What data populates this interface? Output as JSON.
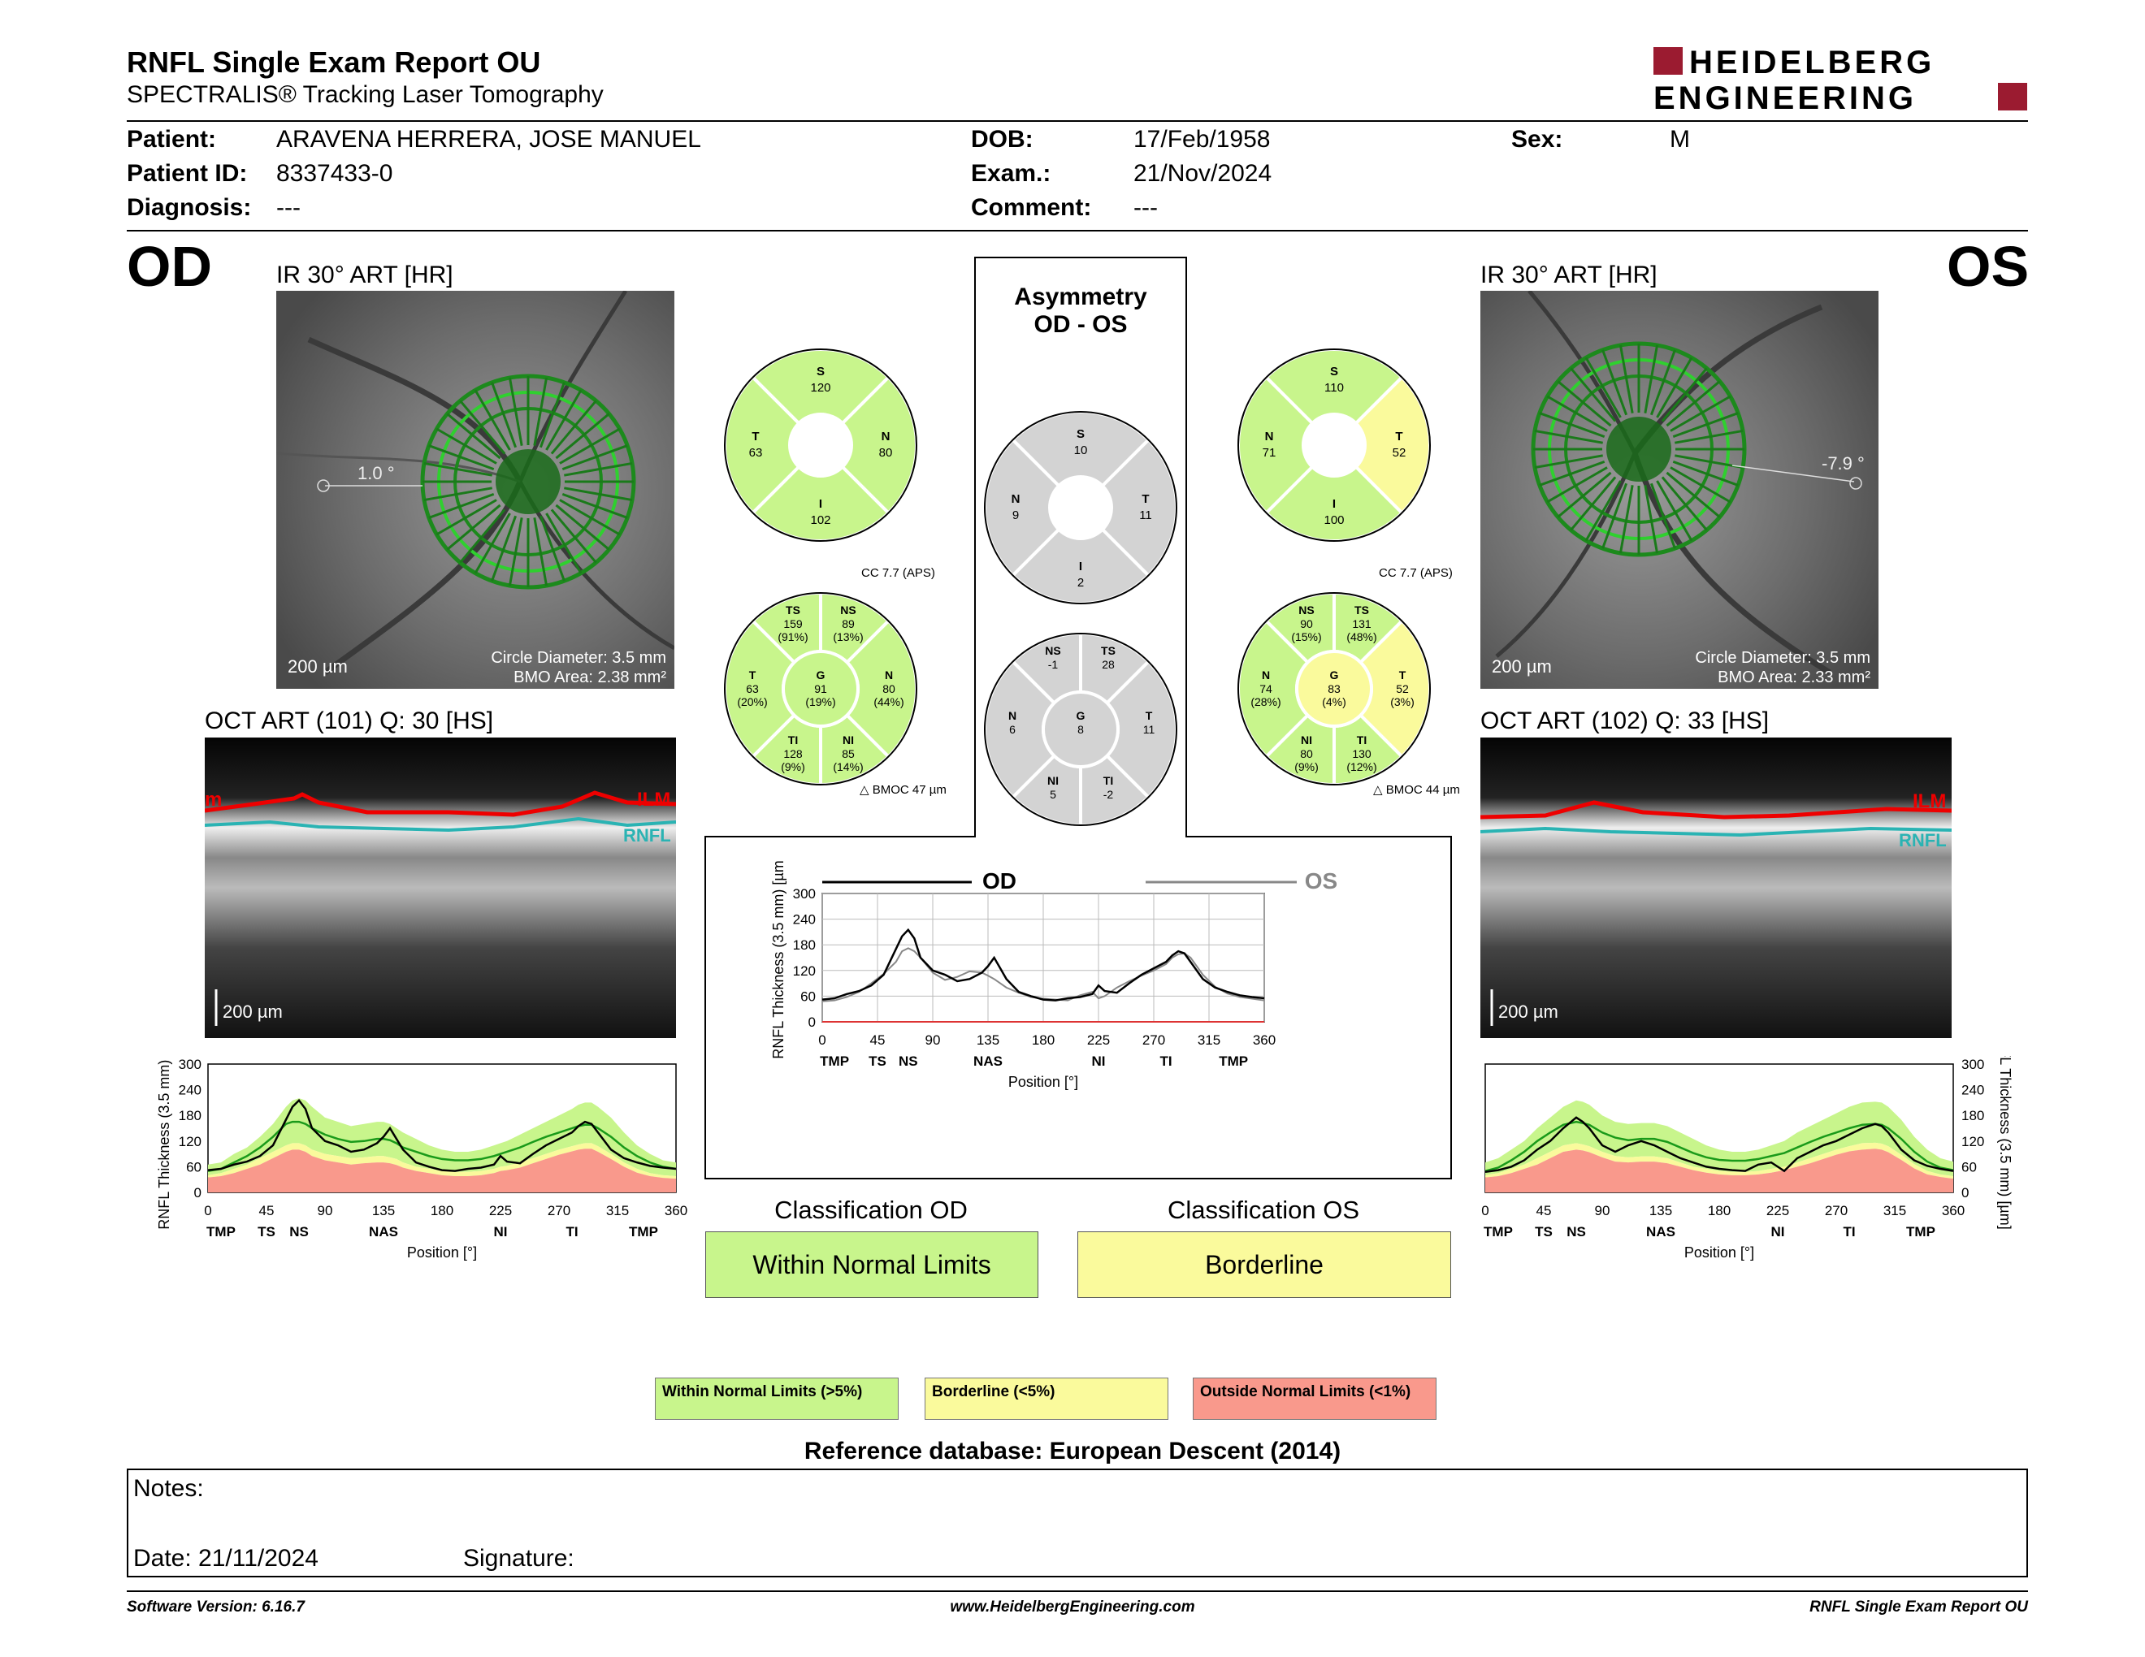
{
  "header": {
    "title": "RNFL Single Exam Report OU",
    "subtitle": "SPECTRALIS® Tracking Laser Tomography",
    "logo_line1": "HEIDELBERG",
    "logo_line2": "ENGINEERING"
  },
  "patient": {
    "patient_label": "Patient:",
    "patient_value": "ARAVENA HERRERA, JOSE MANUEL",
    "id_label": "Patient ID:",
    "id_value": "8337433-0",
    "diag_label": "Diagnosis:",
    "diag_value": "---",
    "dob_label": "DOB:",
    "dob_value": "17/Feb/1958",
    "exam_label": "Exam.:",
    "exam_value": "21/Nov/2024",
    "comment_label": "Comment:",
    "comment_value": "---",
    "sex_label": "Sex:",
    "sex_value": "M"
  },
  "od": {
    "eye": "OD",
    "ir_caption": "IR 30° ART [HR]",
    "angle": "1.0 °",
    "scale": "200 µm",
    "circle_diameter": "Circle Diameter: 3.5 mm",
    "bmo_area": "BMO Area: 2.38 mm²",
    "oct_caption": "OCT ART (101) Q: 30 [HS]",
    "ilm": "ILM",
    "rnfl": "RNFL",
    "bscan_scale": "200 µm"
  },
  "os": {
    "eye": "OS",
    "ir_caption": "IR 30° ART [HR]",
    "angle": "-7.9 °",
    "scale": "200 µm",
    "circle_diameter": "Circle Diameter: 3.5 mm",
    "bmo_area": "BMO Area: 2.33 mm²",
    "oct_caption": "OCT ART (102) Q: 33 [HS]",
    "ilm": "ILM",
    "rnfl": "RNFL",
    "bscan_scale": "200 µm"
  },
  "asymmetry": {
    "title1": "Asymmetry",
    "title2": "OD - OS"
  },
  "quadrants": {
    "od": {
      "S": "120",
      "T": "63",
      "N": "80",
      "I": "102"
    },
    "diff": {
      "S": "10",
      "N": "9",
      "T": "11",
      "I": "2"
    },
    "os": {
      "S": "110",
      "N": "71",
      "T": "52",
      "I": "100"
    }
  },
  "sectors": {
    "od": {
      "cc": "CC 7.7 (APS)",
      "bmoc": "BMOC 47 µm",
      "TS": [
        "159",
        "(91%)"
      ],
      "NS": [
        "89",
        "(13%)"
      ],
      "T": [
        "63",
        "(20%)"
      ],
      "G": [
        "91",
        "(19%)"
      ],
      "N": [
        "80",
        "(44%)"
      ],
      "TI": [
        "128",
        "(9%)"
      ],
      "NI": [
        "85",
        "(14%)"
      ]
    },
    "diff": {
      "NS": "-1",
      "TS": "28",
      "N": "6",
      "G": "8",
      "T": "11",
      "NI": "5",
      "TI": "-2"
    },
    "os": {
      "cc": "CC 7.7 (APS)",
      "bmoc": "BMOC 44 µm",
      "NS": [
        "90",
        "(15%)"
      ],
      "TS": [
        "131",
        "(48%)"
      ],
      "N": [
        "74",
        "(28%)"
      ],
      "G": [
        "83",
        "(4%)"
      ],
      "T": [
        "52",
        "(3%)"
      ],
      "NI": [
        "80",
        "(9%)"
      ],
      "TI": [
        "130",
        "(12%)"
      ]
    }
  },
  "chart_data": [
    {
      "type": "line",
      "title": "OD",
      "xlabel": "Position [°]",
      "ylabel": "RNFL Thickness (3.5 mm) [µm]",
      "xlim": [
        0,
        360
      ],
      "ylim": [
        0,
        300
      ],
      "xticks": [
        "0",
        "45",
        "90",
        "135",
        "180",
        "225",
        "270",
        "315",
        "360"
      ],
      "yticks": [
        "0",
        "60",
        "120",
        "180",
        "240",
        "300"
      ],
      "sector_labels": [
        "TMP",
        "TS",
        "NS",
        "NAS",
        "NI",
        "TI",
        "TMP"
      ],
      "x": [
        0,
        10,
        20,
        30,
        40,
        50,
        60,
        65,
        70,
        75,
        80,
        90,
        100,
        110,
        120,
        130,
        135,
        140,
        145,
        150,
        160,
        170,
        180,
        190,
        200,
        210,
        220,
        225,
        230,
        240,
        250,
        260,
        270,
        280,
        285,
        290,
        295,
        300,
        310,
        320,
        330,
        340,
        350,
        360
      ],
      "series": [
        {
          "name": "OD",
          "values": [
            52,
            55,
            65,
            72,
            85,
            110,
            170,
            200,
            215,
            195,
            150,
            120,
            110,
            95,
            100,
            115,
            130,
            150,
            125,
            100,
            70,
            60,
            52,
            50,
            55,
            58,
            65,
            85,
            72,
            68,
            90,
            110,
            125,
            140,
            155,
            165,
            160,
            140,
            100,
            80,
            70,
            62,
            58,
            55
          ]
        },
        {
          "name": "Normal upper",
          "values": [
            65,
            70,
            90,
            105,
            130,
            160,
            200,
            215,
            220,
            215,
            200,
            175,
            165,
            155,
            160,
            165,
            165,
            160,
            150,
            140,
            125,
            110,
            100,
            95,
            95,
            100,
            110,
            115,
            120,
            135,
            150,
            165,
            180,
            195,
            205,
            210,
            210,
            200,
            175,
            140,
            110,
            90,
            75,
            70
          ]
        },
        {
          "name": "Normal mean",
          "values": [
            50,
            55,
            70,
            85,
            105,
            130,
            160,
            165,
            165,
            160,
            150,
            135,
            125,
            118,
            120,
            125,
            125,
            122,
            115,
            105,
            95,
            85,
            78,
            75,
            75,
            78,
            85,
            90,
            95,
            105,
            118,
            130,
            140,
            150,
            155,
            158,
            158,
            150,
            130,
            105,
            85,
            70,
            60,
            55
          ]
        },
        {
          "name": "Borderline",
          "values": [
            40,
            45,
            55,
            65,
            80,
            95,
            110,
            115,
            115,
            110,
            100,
            90,
            85,
            80,
            82,
            85,
            85,
            82,
            78,
            70,
            60,
            55,
            50,
            48,
            48,
            50,
            55,
            60,
            62,
            70,
            80,
            90,
            100,
            108,
            112,
            115,
            115,
            108,
            90,
            70,
            55,
            45,
            40,
            38
          ]
        },
        {
          "name": "Outside",
          "values": [
            35,
            38,
            45,
            55,
            65,
            80,
            95,
            100,
            100,
            95,
            85,
            75,
            70,
            65,
            68,
            70,
            70,
            68,
            64,
            58,
            50,
            45,
            40,
            38,
            38,
            40,
            45,
            50,
            52,
            58,
            68,
            78,
            88,
            96,
            100,
            102,
            102,
            95,
            78,
            60,
            46,
            38,
            34,
            32
          ]
        }
      ]
    },
    {
      "type": "line",
      "title": "OS",
      "xlabel": "Position [°]",
      "ylabel": "RNFL Thickness (3.5 mm) [µm]",
      "xlim": [
        0,
        360
      ],
      "ylim": [
        0,
        300
      ],
      "xticks": [
        "0",
        "45",
        "90",
        "135",
        "180",
        "225",
        "270",
        "315",
        "360"
      ],
      "yticks": [
        "0",
        "60",
        "120",
        "180",
        "240",
        "300"
      ],
      "sector_labels": [
        "TMP",
        "TS",
        "NS",
        "NAS",
        "NI",
        "TI",
        "TMP"
      ],
      "x": [
        0,
        10,
        20,
        30,
        40,
        50,
        60,
        70,
        75,
        80,
        90,
        100,
        110,
        120,
        130,
        140,
        150,
        160,
        170,
        180,
        190,
        200,
        210,
        220,
        230,
        240,
        250,
        260,
        270,
        280,
        290,
        300,
        305,
        310,
        320,
        330,
        340,
        350,
        360
      ],
      "series": [
        {
          "name": "OS",
          "values": [
            48,
            52,
            60,
            75,
            100,
            120,
            150,
            175,
            165,
            150,
            110,
            95,
            110,
            120,
            110,
            95,
            80,
            70,
            60,
            55,
            52,
            50,
            65,
            70,
            50,
            80,
            95,
            110,
            120,
            135,
            150,
            160,
            155,
            140,
            100,
            75,
            62,
            55,
            50
          ]
        },
        {
          "name": "Normal upper",
          "values": [
            70,
            80,
            100,
            120,
            150,
            175,
            200,
            215,
            212,
            205,
            180,
            165,
            160,
            162,
            162,
            155,
            140,
            125,
            110,
            100,
            95,
            95,
            100,
            110,
            120,
            140,
            155,
            170,
            185,
            200,
            210,
            212,
            210,
            200,
            170,
            130,
            100,
            80,
            72
          ]
        },
        {
          "name": "Normal mean",
          "values": [
            50,
            58,
            75,
            95,
            120,
            140,
            158,
            165,
            162,
            158,
            140,
            128,
            122,
            125,
            125,
            118,
            105,
            92,
            82,
            76,
            74,
            74,
            78,
            85,
            92,
            105,
            118,
            130,
            140,
            150,
            158,
            160,
            158,
            150,
            125,
            95,
            72,
            58,
            52
          ]
        },
        {
          "name": "Borderline",
          "values": [
            40,
            45,
            55,
            65,
            80,
            95,
            110,
            115,
            112,
            108,
            95,
            85,
            82,
            84,
            84,
            80,
            70,
            60,
            55,
            50,
            48,
            48,
            50,
            55,
            60,
            70,
            80,
            90,
            100,
            108,
            115,
            116,
            114,
            108,
            88,
            66,
            50,
            42,
            38
          ]
        },
        {
          "name": "Outside",
          "values": [
            35,
            38,
            45,
            55,
            65,
            80,
            95,
            100,
            98,
            94,
            82,
            72,
            70,
            72,
            72,
            68,
            60,
            52,
            46,
            42,
            40,
            40,
            42,
            46,
            52,
            60,
            68,
            78,
            88,
            96,
            100,
            102,
            100,
            94,
            76,
            56,
            42,
            36,
            32
          ]
        }
      ]
    },
    {
      "type": "line",
      "title": "Asymmetry",
      "xlabel": "Position [°]",
      "ylabel": "RNFL Thickness (3.5 mm) [µm]",
      "xlim": [
        0,
        360
      ],
      "ylim": [
        0,
        300
      ],
      "xticks": [
        "0",
        "45",
        "90",
        "135",
        "180",
        "225",
        "270",
        "315",
        "360"
      ],
      "yticks": [
        "0",
        "60",
        "120",
        "180",
        "240",
        "300"
      ],
      "sector_labels": [
        "TMP",
        "TS",
        "NS",
        "NAS",
        "NI",
        "TI",
        "TMP"
      ],
      "x": [
        0,
        10,
        20,
        30,
        40,
        50,
        60,
        65,
        70,
        75,
        80,
        90,
        100,
        110,
        120,
        130,
        135,
        140,
        145,
        150,
        160,
        170,
        180,
        190,
        200,
        210,
        220,
        225,
        230,
        240,
        250,
        260,
        270,
        280,
        285,
        290,
        295,
        300,
        310,
        320,
        330,
        340,
        350,
        360
      ],
      "series": [
        {
          "name": "OD",
          "values": [
            52,
            55,
            65,
            72,
            85,
            110,
            170,
            200,
            215,
            195,
            150,
            120,
            110,
            95,
            100,
            115,
            130,
            150,
            125,
            100,
            70,
            60,
            52,
            50,
            55,
            58,
            65,
            85,
            72,
            68,
            90,
            110,
            125,
            140,
            155,
            165,
            160,
            140,
            100,
            80,
            70,
            62,
            58,
            55
          ]
        },
        {
          "name": "OS",
          "values": [
            48,
            50,
            58,
            70,
            90,
            112,
            140,
            165,
            172,
            165,
            150,
            115,
            98,
            105,
            118,
            115,
            108,
            100,
            90,
            80,
            68,
            58,
            54,
            52,
            50,
            62,
            70,
            55,
            60,
            80,
            95,
            108,
            120,
            135,
            150,
            158,
            160,
            150,
            110,
            82,
            66,
            58,
            54,
            50
          ]
        }
      ],
      "legend": [
        "OD",
        "OS"
      ]
    }
  ],
  "classification": {
    "od_title": "Classification OD",
    "od_value": "Within Normal Limits",
    "os_title": "Classification OS",
    "os_value": "Borderline"
  },
  "legend": {
    "wnl": "Within Normal Limits (>5%)",
    "bl": "Borderline (<5%)",
    "onl": "Outside Normal Limits (<1%)"
  },
  "reference": "Reference database: European Descent (2014)",
  "notes": {
    "notes_label": "Notes:",
    "date": "Date: 21/11/2024",
    "signature": "Signature:"
  },
  "footer": {
    "version": "Software Version: 6.16.7",
    "url": "www.HeidelbergEngineering.com",
    "report": "RNFL Single Exam Report OU"
  },
  "colors": {
    "green": "#c8f58c",
    "yellow": "#fafa9c",
    "red": "#f9998c",
    "gray": "#d3d3d3",
    "brand": "#9b1b30"
  }
}
